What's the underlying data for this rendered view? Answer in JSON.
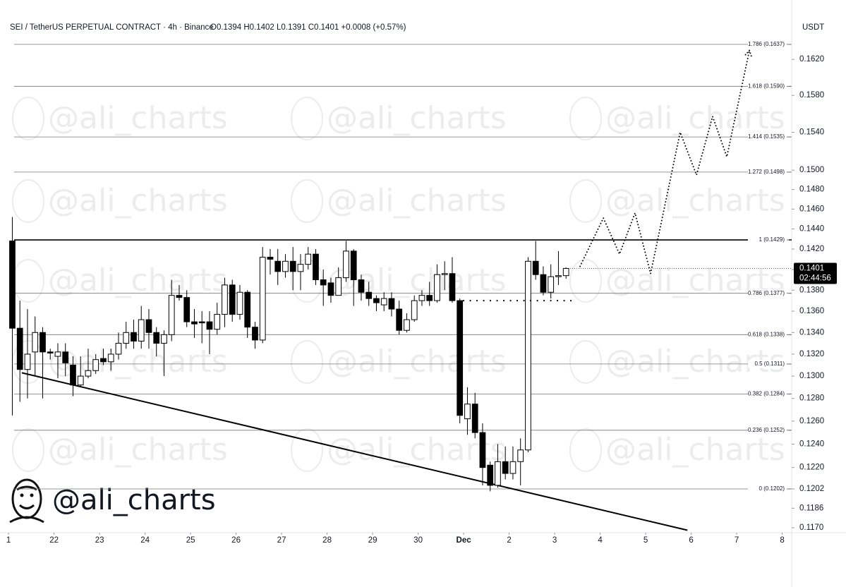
{
  "chart_data": {
    "type": "candlestick",
    "title": "SEI / TetherUS PERPETUAL CONTRACT · 4h · Binance",
    "quote": "O0.1394  H0.1402  L0.1391  C0.1401  +0.0008 (+0.57%)",
    "currency": "USDT",
    "watermark": "@ali_charts",
    "brand": "@ali_charts",
    "last_price": 0.1401,
    "countdown": "02:44:56",
    "log_scale": true,
    "up_color": "#ffffff",
    "down_color": "#000000",
    "x": [
      2,
      6,
      10,
      14,
      18,
      22,
      26,
      30,
      34,
      38,
      42,
      46,
      50,
      54,
      58,
      62,
      66,
      70,
      74,
      78,
      82,
      86,
      90,
      94,
      98,
      102,
      106,
      110,
      114,
      118,
      122,
      126,
      130,
      134,
      138,
      142,
      146,
      150,
      154,
      158,
      162,
      166,
      170,
      174,
      178,
      182,
      186,
      190,
      194,
      198,
      202,
      206,
      210,
      214,
      218,
      222,
      226,
      230,
      234,
      238,
      242,
      246,
      250,
      254,
      258,
      262,
      266,
      270,
      274,
      278,
      282,
      286,
      290,
      294
    ],
    "open": [
      0.1428,
      0.1344,
      0.1306,
      0.1322,
      0.134,
      0.1322,
      0.1318,
      0.1322,
      0.131,
      0.1292,
      0.13,
      0.1305,
      0.1316,
      0.1313,
      0.132,
      0.133,
      0.134,
      0.1332,
      0.1352,
      0.134,
      0.133,
      0.1338,
      0.1375,
      0.1373,
      0.135,
      0.135,
      0.135,
      0.1343,
      0.1357,
      0.1385,
      0.1357,
      0.1378,
      0.1345,
      0.1333,
      0.1412,
      0.1408,
      0.1398,
      0.1408,
      0.1398,
      0.1405,
      0.1415,
      0.139,
      0.1387,
      0.1375,
      0.1392,
      0.1418,
      0.139,
      0.1378,
      0.1372,
      0.1366,
      0.1372,
      0.1362,
      0.1342,
      0.1352,
      0.137,
      0.1375,
      0.137,
      0.1395,
      0.1396,
      0.137,
      0.1262,
      0.1275,
      0.125,
      0.1222,
      0.1205,
      0.1225,
      0.1215,
      0.1225,
      0.1235,
      0.1408,
      0.1395,
      0.1378,
      0.1393,
      0.1394
    ],
    "high": [
      0.1452,
      0.137,
      0.1362,
      0.1355,
      0.1345,
      0.1325,
      0.133,
      0.133,
      0.1318,
      0.1318,
      0.1325,
      0.132,
      0.1325,
      0.1325,
      0.134,
      0.135,
      0.1352,
      0.1365,
      0.1362,
      0.1345,
      0.1342,
      0.139,
      0.1385,
      0.138,
      0.1362,
      0.136,
      0.136,
      0.1368,
      0.1392,
      0.139,
      0.1385,
      0.138,
      0.135,
      0.1422,
      0.142,
      0.142,
      0.1415,
      0.1422,
      0.1415,
      0.1422,
      0.142,
      0.14,
      0.1392,
      0.1402,
      0.1428,
      0.142,
      0.1395,
      0.1388,
      0.1375,
      0.1378,
      0.1378,
      0.137,
      0.1358,
      0.1375,
      0.138,
      0.1388,
      0.1405,
      0.1408,
      0.1412,
      0.1372,
      0.129,
      0.1285,
      0.1258,
      0.1225,
      0.124,
      0.1238,
      0.1238,
      0.1245,
      0.1412,
      0.1428,
      0.1403,
      0.1405,
      0.1418,
      0.1402
    ],
    "low": [
      0.1265,
      0.1277,
      0.128,
      0.13,
      0.128,
      0.1315,
      0.1298,
      0.13,
      0.1282,
      0.129,
      0.1298,
      0.1302,
      0.131,
      0.1305,
      0.1315,
      0.1325,
      0.1325,
      0.1325,
      0.1325,
      0.1318,
      0.13,
      0.1332,
      0.137,
      0.1345,
      0.1335,
      0.133,
      0.132,
      0.1338,
      0.1345,
      0.135,
      0.1352,
      0.1335,
      0.1325,
      0.133,
      0.1395,
      0.1385,
      0.1392,
      0.138,
      0.138,
      0.14,
      0.1385,
      0.1365,
      0.1368,
      0.1375,
      0.1388,
      0.1365,
      0.137,
      0.1365,
      0.136,
      0.136,
      0.1355,
      0.1338,
      0.134,
      0.135,
      0.1365,
      0.1365,
      0.1368,
      0.138,
      0.1368,
      0.1258,
      0.1248,
      0.1245,
      0.1205,
      0.12,
      0.1203,
      0.121,
      0.121,
      0.1205,
      0.1233,
      0.139,
      0.1375,
      0.1372,
      0.1385,
      0.1391
    ],
    "close": [
      0.1344,
      0.1306,
      0.132,
      0.134,
      0.1322,
      0.1321,
      0.1322,
      0.1312,
      0.1292,
      0.13,
      0.1305,
      0.1315,
      0.1313,
      0.132,
      0.133,
      0.134,
      0.1332,
      0.1352,
      0.134,
      0.133,
      0.1338,
      0.1375,
      0.1373,
      0.135,
      0.1348,
      0.1349,
      0.1343,
      0.1357,
      0.1385,
      0.1357,
      0.1378,
      0.1345,
      0.1333,
      0.1412,
      0.141,
      0.1398,
      0.1408,
      0.1398,
      0.1405,
      0.1415,
      0.139,
      0.1385,
      0.1375,
      0.1392,
      0.1418,
      0.139,
      0.1378,
      0.1372,
      0.1368,
      0.1372,
      0.1362,
      0.1342,
      0.1352,
      0.137,
      0.1375,
      0.137,
      0.1395,
      0.1396,
      0.137,
      0.1265,
      0.1275,
      0.125,
      0.122,
      0.1205,
      0.1225,
      0.1215,
      0.1225,
      0.1235,
      0.1408,
      0.1395,
      0.1378,
      0.1393,
      0.1394,
      0.1401
    ],
    "xlim": [
      -4.5,
      413
    ],
    "xticks": [
      {
        "value": 0,
        "label": "1"
      },
      {
        "value": 24,
        "label": "22"
      },
      {
        "value": 48,
        "label": "23"
      },
      {
        "value": 72,
        "label": "24"
      },
      {
        "value": 96,
        "label": "25"
      },
      {
        "value": 120,
        "label": "26"
      },
      {
        "value": 144,
        "label": "27"
      },
      {
        "value": 168,
        "label": "28"
      },
      {
        "value": 192,
        "label": "29"
      },
      {
        "value": 216,
        "label": "30"
      },
      {
        "value": 240,
        "label": "Dec"
      },
      {
        "value": 264,
        "label": "2"
      },
      {
        "value": 288,
        "label": "3"
      },
      {
        "value": 312,
        "label": "4"
      },
      {
        "value": 336,
        "label": "5"
      },
      {
        "value": 360,
        "label": "6"
      },
      {
        "value": 384,
        "label": "7"
      },
      {
        "value": 408,
        "label": "8"
      }
    ],
    "ylim": [
      0.1166,
      0.1649
    ],
    "yticks": [
      {
        "value": 0.117,
        "label": "0.1170"
      },
      0.1186,
      0.1202,
      {
        "value": 0.122,
        "label": "0.1220"
      },
      {
        "value": 0.124,
        "label": "0.1240"
      },
      {
        "value": 0.126,
        "label": "0.1260"
      },
      {
        "value": 0.128,
        "label": "0.1280"
      },
      {
        "value": 0.13,
        "label": "0.1300"
      },
      {
        "value": 0.132,
        "label": "0.1320"
      },
      {
        "value": 0.134,
        "label": "0.1340"
      },
      {
        "value": 0.136,
        "label": "0.1360"
      },
      {
        "value": 0.138,
        "label": "0.1380"
      },
      {
        "value": 0.14,
        "label": "0.1400"
      },
      {
        "value": 0.142,
        "label": "0.1420"
      },
      {
        "value": 0.144,
        "label": "0.1440"
      },
      {
        "value": 0.146,
        "label": "0.1460"
      },
      {
        "value": 0.148,
        "label": "0.1480"
      },
      {
        "value": 0.15,
        "label": "0.1500"
      },
      {
        "value": 0.154,
        "label": "0.1540"
      },
      {
        "value": 0.158,
        "label": "0.1580"
      },
      {
        "value": 0.162,
        "label": "0.1620"
      }
    ],
    "levels": [
      {
        "label": "0 (0.1202)",
        "value": 0.1202,
        "width": 0.8
      },
      {
        "label": "0.236 (0.1252)",
        "value": 0.1252,
        "width": 0.8
      },
      {
        "label": "0.382 (0.1284)",
        "value": 0.1284,
        "width": 0.8
      },
      {
        "label": "0.5 (0.1311)",
        "value": 0.1311,
        "width": 0.8
      },
      {
        "label": "0.618 (0.1338)",
        "value": 0.1338,
        "width": 0.8
      },
      {
        "label": "0.786 (0.1377)",
        "value": 0.1377,
        "width": 0.8
      },
      {
        "label": "1 (0.1429)",
        "value": 0.1429,
        "width": 1.6
      },
      {
        "label": "1.272 (0.1498)",
        "value": 0.1498,
        "width": 0.8
      },
      {
        "label": "1.414 (0.1535)",
        "value": 0.1535,
        "width": 0.8
      },
      {
        "label": "1.618 (0.1590)",
        "value": 0.159,
        "width": 0.8
      },
      {
        "label": "1.786 (0.1637)",
        "value": 0.1637,
        "width": 0.8
      }
    ],
    "trendline": {
      "x": [
        7,
        358
      ],
      "values": [
        0.1303,
        0.1168
      ]
    },
    "support": {
      "x": [
        240,
        298
      ],
      "value": 0.137
    },
    "projection": {
      "x": [
        301.4,
        313.7,
        322.2,
        330.4,
        338.6,
        354.2,
        362.8,
        371.3,
        378.8,
        390.7
      ],
      "values": [
        0.1403,
        0.1451,
        0.1415,
        0.1456,
        0.1396,
        0.154,
        0.1495,
        0.1557,
        0.1514,
        0.163
      ]
    }
  }
}
